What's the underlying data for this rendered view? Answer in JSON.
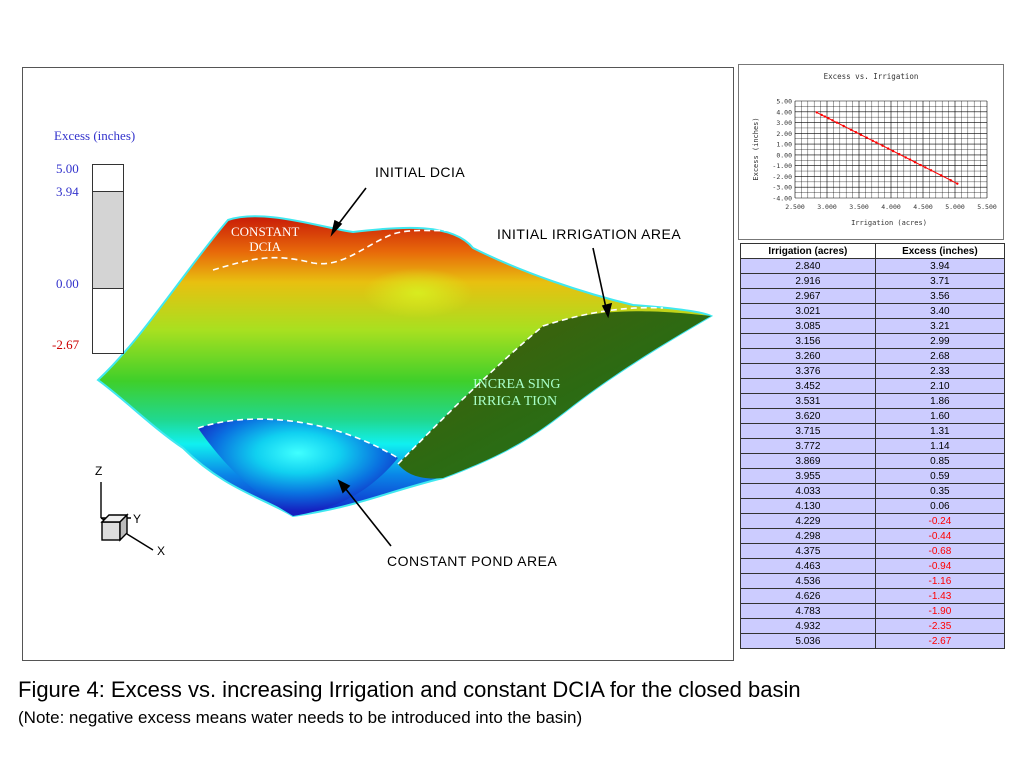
{
  "legend": {
    "title": "Excess (inches)",
    "max": "5.00",
    "current": "3.94",
    "zero": "0.00",
    "min": "-2.67",
    "range": [
      -2.67,
      5.0
    ],
    "current_value": 3.94
  },
  "annotations": {
    "initial_dcia": "INITIAL DCIA",
    "initial_irrigation_area": "INITIAL IRRIGATION AREA",
    "constant_pond_area": "CONSTANT POND AREA",
    "constant_dcia_line1": "CONSTANT",
    "constant_dcia_line2": "DCIA",
    "increasing_irrigation_line1": "INCREA SING",
    "increasing_irrigation_line2": "IRRIGA TION"
  },
  "axes_triad": {
    "z": "Z",
    "y": "Y",
    "x": "X"
  },
  "colors": {
    "legend_title": "#3333cc",
    "legend_max": "#3333cc",
    "legend_current": "#3333cc",
    "legend_zero": "#3333cc",
    "legend_min": "#cc0000",
    "table_cell_bg": "#ccccff",
    "negative_text": "#ff0000",
    "mini_line": "#ff0000",
    "constant_dcia_label": "#ffffff",
    "increasing_irrigation_label": "#a8ffc8"
  },
  "chart_data": {
    "type": "line",
    "title": "Excess vs. Irrigation",
    "xlabel": "Irrigation (acres)",
    "ylabel": "Excess (inches)",
    "xlim": [
      2.5,
      5.5
    ],
    "ylim": [
      -4.0,
      5.0
    ],
    "grid": true,
    "x_ticks": [
      "2.500",
      "3.000",
      "3.500",
      "4.000",
      "4.500",
      "5.000",
      "5.500"
    ],
    "y_ticks": [
      "5.00",
      "4.00",
      "3.00",
      "2.00",
      "1.00",
      "0.00",
      "-1.00",
      "-2.00",
      "-3.00",
      "-4.00"
    ],
    "x": [
      2.84,
      2.916,
      2.967,
      3.021,
      3.085,
      3.156,
      3.26,
      3.376,
      3.452,
      3.531,
      3.62,
      3.715,
      3.772,
      3.869,
      3.955,
      4.033,
      4.13,
      4.229,
      4.298,
      4.375,
      4.463,
      4.536,
      4.626,
      4.783,
      4.932,
      5.036
    ],
    "y": [
      3.94,
      3.71,
      3.56,
      3.4,
      3.21,
      2.99,
      2.68,
      2.33,
      2.1,
      1.86,
      1.6,
      1.31,
      1.14,
      0.85,
      0.59,
      0.35,
      0.06,
      -0.24,
      -0.44,
      -0.68,
      -0.94,
      -1.16,
      -1.43,
      -1.9,
      -2.35,
      -2.67
    ]
  },
  "table": {
    "headers": [
      "Irrigation (acres)",
      "Excess (inches)"
    ],
    "rows": [
      [
        "2.840",
        "3.94"
      ],
      [
        "2.916",
        "3.71"
      ],
      [
        "2.967",
        "3.56"
      ],
      [
        "3.021",
        "3.40"
      ],
      [
        "3.085",
        "3.21"
      ],
      [
        "3.156",
        "2.99"
      ],
      [
        "3.260",
        "2.68"
      ],
      [
        "3.376",
        "2.33"
      ],
      [
        "3.452",
        "2.10"
      ],
      [
        "3.531",
        "1.86"
      ],
      [
        "3.620",
        "1.60"
      ],
      [
        "3.715",
        "1.31"
      ],
      [
        "3.772",
        "1.14"
      ],
      [
        "3.869",
        "0.85"
      ],
      [
        "3.955",
        "0.59"
      ],
      [
        "4.033",
        "0.35"
      ],
      [
        "4.130",
        "0.06"
      ],
      [
        "4.229",
        "-0.24"
      ],
      [
        "4.298",
        "-0.44"
      ],
      [
        "4.375",
        "-0.68"
      ],
      [
        "4.463",
        "-0.94"
      ],
      [
        "4.536",
        "-1.16"
      ],
      [
        "4.626",
        "-1.43"
      ],
      [
        "4.783",
        "-1.90"
      ],
      [
        "4.932",
        "-2.35"
      ],
      [
        "5.036",
        "-2.67"
      ]
    ]
  },
  "caption": "Figure 4: Excess vs. increasing Irrigation and constant DCIA for the closed basin",
  "note": "(Note: negative excess means water needs to be introduced into the basin)"
}
